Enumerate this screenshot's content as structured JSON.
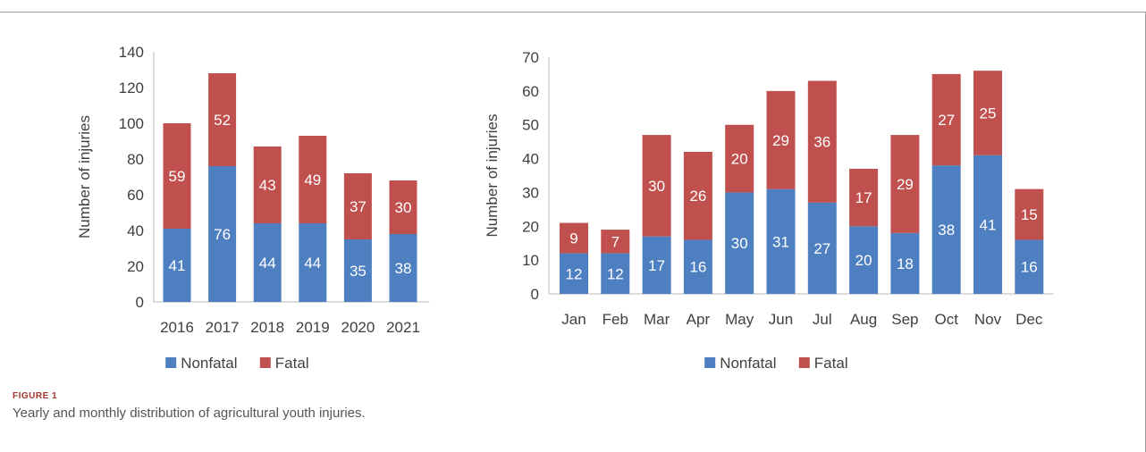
{
  "chart_data": [
    {
      "type": "bar",
      "stacked": true,
      "categories": [
        "2016",
        "2017",
        "2018",
        "2019",
        "2020",
        "2021"
      ],
      "series": [
        {
          "name": "Nonfatal",
          "color": "#4e7fc1",
          "values": [
            41,
            76,
            44,
            44,
            35,
            38
          ]
        },
        {
          "name": "Fatal",
          "color": "#c0504d",
          "values": [
            59,
            52,
            43,
            49,
            37,
            30
          ]
        }
      ],
      "xlabel": "",
      "ylabel": "Number of injuries",
      "ylim": [
        0,
        140
      ],
      "yticks": [
        0,
        20,
        40,
        60,
        80,
        100,
        120,
        140
      ],
      "grid": false,
      "legend": "bottom"
    },
    {
      "type": "bar",
      "stacked": true,
      "categories": [
        "Jan",
        "Feb",
        "Mar",
        "Apr",
        "May",
        "Jun",
        "Jul",
        "Aug",
        "Sep",
        "Oct",
        "Nov",
        "Dec"
      ],
      "series": [
        {
          "name": "Nonfatal",
          "color": "#4e7fc1",
          "values": [
            12,
            12,
            17,
            16,
            30,
            31,
            27,
            20,
            18,
            38,
            41,
            16
          ]
        },
        {
          "name": "Fatal",
          "color": "#c0504d",
          "values": [
            9,
            7,
            30,
            26,
            20,
            29,
            36,
            17,
            29,
            27,
            25,
            15
          ]
        }
      ],
      "xlabel": "",
      "ylabel": "Number of injuries",
      "ylim": [
        0,
        70
      ],
      "yticks": [
        0,
        10,
        20,
        30,
        40,
        50,
        60,
        70
      ],
      "grid": false,
      "legend": "bottom"
    }
  ],
  "figure": {
    "label": "FIGURE 1",
    "caption": "Yearly and monthly distribution of agricultural youth injuries."
  }
}
